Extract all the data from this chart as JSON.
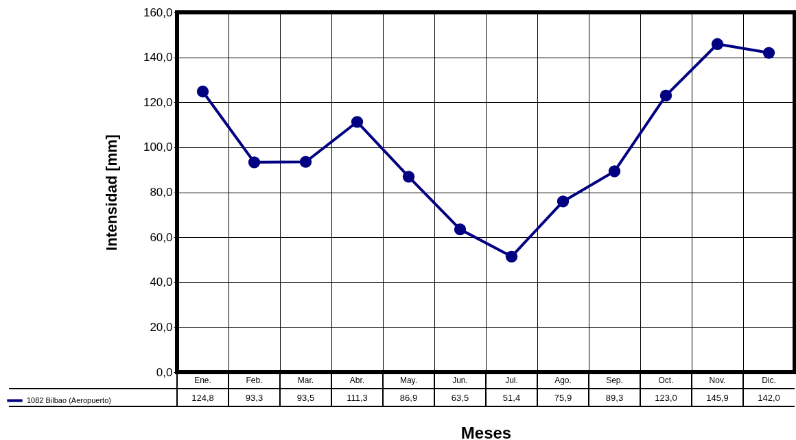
{
  "chart_data": {
    "type": "line",
    "xlabel": "Meses",
    "ylabel": "Intensidad [mm]",
    "categories": [
      "Ene.",
      "Feb.",
      "Mar.",
      "Abr.",
      "May.",
      "Jun.",
      "Jul.",
      "Ago.",
      "Sep.",
      "Oct.",
      "Nov.",
      "Dic."
    ],
    "series": [
      {
        "name": "1082 Bilbao (Aeropuerto)",
        "color": "#000080",
        "values": [
          124.8,
          93.3,
          93.5,
          111.3,
          86.9,
          63.5,
          51.4,
          75.9,
          89.3,
          123.0,
          145.9,
          142.0
        ],
        "value_labels": [
          "124,8",
          "93,3",
          "93,5",
          "111,3",
          "86,9",
          "63,5",
          "51,4",
          "75,9",
          "89,3",
          "123,0",
          "145,9",
          "142,0"
        ]
      }
    ],
    "ylim": [
      0,
      160
    ],
    "yticks": [
      {
        "value": 0,
        "label": "0,0"
      },
      {
        "value": 20,
        "label": "20,0"
      },
      {
        "value": 40,
        "label": "40,0"
      },
      {
        "value": 60,
        "label": "60,0"
      },
      {
        "value": 80,
        "label": "80,0"
      },
      {
        "value": 100,
        "label": "100,0"
      },
      {
        "value": 120,
        "label": "120,0"
      },
      {
        "value": 140,
        "label": "140,0"
      },
      {
        "value": 160,
        "label": "160,0"
      }
    ],
    "grid": true,
    "legend": "bottom left",
    "marker": "circle",
    "line_style": "solid"
  }
}
